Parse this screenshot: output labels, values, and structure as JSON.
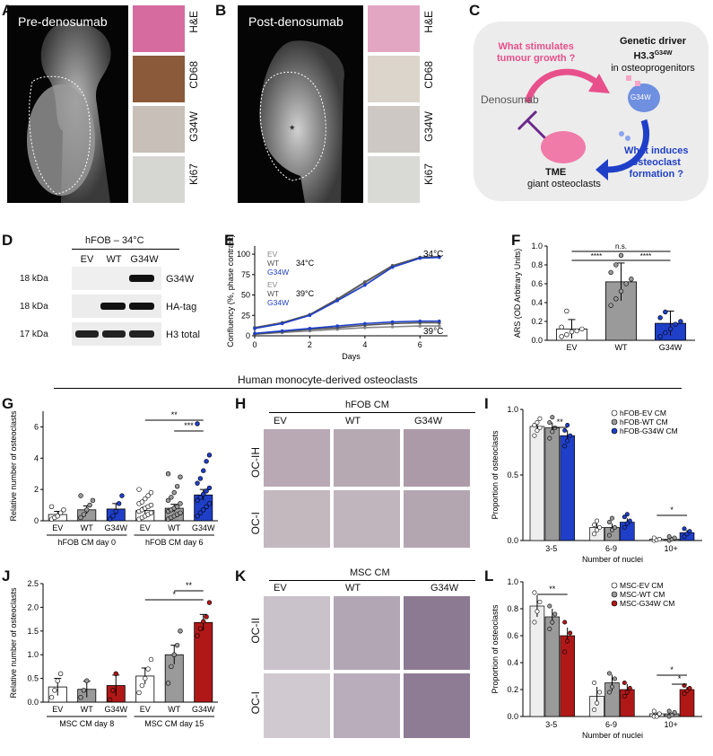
{
  "panels": {
    "A": {
      "letter": "A",
      "title": "Pre-denosumab",
      "stains": [
        "H&E",
        "CD68",
        "G34W",
        "Ki67"
      ]
    },
    "B": {
      "letter": "B",
      "title": "Post-denosumab",
      "stains": [
        "H&E",
        "CD68",
        "G34W",
        "Ki67"
      ],
      "asterisk": "*"
    },
    "C": {
      "letter": "C",
      "q1": [
        "What stimulates",
        "tumour growth ?"
      ],
      "driver": [
        "Genetic driver",
        "H3.3",
        "G34W",
        "in osteoprogenitors"
      ],
      "cell_label": "G34W",
      "denosumab": "Denosumab",
      "tme": "TME",
      "tme_sub": "giant osteoclasts",
      "q2": [
        "What induces",
        "osteoclast",
        "formation ?"
      ]
    },
    "D": {
      "letter": "D",
      "header": "hFOB – 34°C",
      "lanes": [
        "EV",
        "WT",
        "G34W"
      ],
      "rows": [
        {
          "kda": "18 kDa",
          "label": "G34W"
        },
        {
          "kda": "18 kDa",
          "label": "HA-tag"
        },
        {
          "kda": "17 kDa",
          "label": "H3 total"
        }
      ]
    },
    "E": {
      "letter": "E",
      "ylabel": "Confluency (%, phase contrast)",
      "xlabel": "Days",
      "legend34": [
        "EV",
        "WT",
        "G34W"
      ],
      "legend39": [
        "EV",
        "WT",
        "G34W"
      ],
      "temp34": "34°C",
      "temp39": "39°C"
    },
    "F": {
      "letter": "F",
      "ylabel": "ARS (OD Arbitrary Units)",
      "sig": [
        "n.s.",
        "****",
        "****"
      ]
    },
    "G": {
      "letter": "G",
      "ylabel": "Relative number of osteoclasts",
      "group_labels": [
        "hFOB CM day 0",
        "hFOB CM day 6"
      ],
      "sig": [
        "**",
        "***"
      ]
    },
    "H": {
      "letter": "H",
      "header": "hFOB CM",
      "cols": [
        "EV",
        "WT",
        "G34W"
      ],
      "rows": [
        "OC-IH",
        "OC-I"
      ]
    },
    "I": {
      "letter": "I",
      "ylabel": "Proportion of osteoclasts",
      "xlabel": "Number of nuclei",
      "legend": [
        "hFOB-EV CM",
        "hFOB-WT CM",
        "hFOB-G34W CM"
      ],
      "sig": [
        "**",
        "*"
      ]
    },
    "J": {
      "letter": "J",
      "ylabel": "Relative number of osteoclasts",
      "group_labels": [
        "MSC CM day 8",
        "MSC CM day 15"
      ],
      "sig": [
        "*",
        "**"
      ]
    },
    "K": {
      "letter": "K",
      "header": "MSC CM",
      "cols": [
        "EV",
        "WT",
        "G34W"
      ],
      "rows": [
        "OC-II",
        "OC-I"
      ]
    },
    "L": {
      "letter": "L",
      "ylabel": "Proportion of osteoclasts",
      "xlabel": "Number of nuclei",
      "legend": [
        "MSC-EV CM",
        "MSC-WT CM",
        "MSC-G34W CM"
      ],
      "sig": [
        "**",
        "*",
        "*"
      ]
    },
    "section_title": "Human monocyte-derived osteoclasts"
  },
  "chart_data": [
    {
      "id": "E",
      "type": "line",
      "x_range": [
        0,
        7
      ],
      "ylim": [
        0,
        110
      ],
      "xticks": [
        "0",
        "2",
        "4",
        "6"
      ],
      "yticks": [
        "0",
        "25",
        "50",
        "75",
        "100"
      ],
      "series": [
        {
          "name": "EV",
          "condition": "34°C",
          "x": [
            0,
            1,
            2,
            3,
            4,
            5,
            6,
            6.7
          ],
          "values": [
            10,
            16,
            26,
            44,
            65,
            85,
            96,
            97
          ]
        },
        {
          "name": "WT",
          "condition": "34°C",
          "x": [
            0,
            1,
            2,
            3,
            4,
            5,
            6,
            6.7
          ],
          "values": [
            10,
            16,
            26,
            45,
            66,
            86,
            96,
            97
          ]
        },
        {
          "name": "G34W",
          "condition": "34°C",
          "x": [
            0,
            1,
            2,
            3,
            4,
            5,
            6,
            6.7
          ],
          "values": [
            9,
            15,
            25,
            43,
            62,
            84,
            95,
            96
          ]
        },
        {
          "name": "EV",
          "condition": "39°C",
          "x": [
            0,
            1,
            2,
            3,
            4,
            5,
            6,
            6.7
          ],
          "values": [
            2,
            4,
            6,
            8,
            10,
            11,
            12,
            12
          ]
        },
        {
          "name": "WT",
          "condition": "39°C",
          "x": [
            0,
            1,
            2,
            3,
            4,
            5,
            6,
            6.7
          ],
          "values": [
            2,
            5,
            8,
            10,
            13,
            15,
            16,
            16
          ]
        },
        {
          "name": "G34W",
          "condition": "39°C",
          "x": [
            0,
            1,
            2,
            3,
            4,
            5,
            6,
            6.7
          ],
          "values": [
            3,
            6,
            9,
            12,
            15,
            17,
            18,
            18
          ]
        }
      ]
    },
    {
      "id": "F",
      "type": "bar",
      "categories": [
        "EV",
        "WT",
        "G34W"
      ],
      "values": [
        0.12,
        0.62,
        0.18
      ],
      "errors": [
        0.1,
        0.2,
        0.13
      ],
      "ylim": [
        0,
        1.0
      ],
      "yticks": [
        "0.0",
        "0.2",
        "0.4",
        "0.6",
        "0.8",
        "1.0"
      ],
      "points": [
        [
          0.04,
          0.06,
          0.09,
          0.1,
          0.12,
          0.14,
          0.31
        ],
        [
          0.37,
          0.44,
          0.52,
          0.6,
          0.65,
          0.72,
          0.8,
          0.9
        ],
        [
          0.04,
          0.08,
          0.12,
          0.17,
          0.2,
          0.24,
          0.3
        ]
      ],
      "colors": [
        "#ffffff",
        "#9a9a9a",
        "#1f3fc8"
      ]
    },
    {
      "id": "G",
      "type": "bar",
      "categories": [
        "EV",
        "WT",
        "G34W",
        "EV",
        "WT",
        "G34W"
      ],
      "values": [
        0.4,
        0.7,
        0.75,
        0.65,
        0.8,
        1.65
      ],
      "errors": [
        0.2,
        0.25,
        0.35,
        0.2,
        0.25,
        0.35
      ],
      "ylim": [
        0,
        7
      ],
      "yticks": [
        "0",
        "2",
        "4",
        "6"
      ],
      "points": [
        [
          0.1,
          0.2,
          0.3,
          0.5,
          0.7,
          0.9
        ],
        [
          0.2,
          0.4,
          0.7,
          1.0,
          1.3,
          1.6
        ],
        [
          0.1,
          0.3,
          0.6,
          1.1,
          1.6
        ],
        [
          0.1,
          0.2,
          0.3,
          0.4,
          0.5,
          0.6,
          0.7,
          0.8,
          0.9,
          1.0,
          1.1,
          1.2,
          1.4,
          1.6,
          1.8,
          2.0
        ],
        [
          0.1,
          0.2,
          0.3,
          0.4,
          0.5,
          0.6,
          0.7,
          0.8,
          0.9,
          1.1,
          1.3,
          1.5,
          1.8,
          2.2,
          2.8,
          3.0
        ],
        [
          0.3,
          0.5,
          0.7,
          0.9,
          1.1,
          1.3,
          1.5,
          1.7,
          1.9,
          2.1,
          2.4,
          2.7,
          3.2,
          3.8,
          4.2,
          6.2
        ]
      ],
      "colors": [
        "#ffffff",
        "#9a9a9a",
        "#1f3fc8",
        "#ffffff",
        "#9a9a9a",
        "#1f3fc8"
      ]
    },
    {
      "id": "I",
      "type": "bar",
      "categories": [
        "3-5",
        "6-9",
        "10+"
      ],
      "series": [
        {
          "name": "hFOB-EV CM",
          "values": [
            0.87,
            0.1,
            0.01
          ],
          "errors": [
            0.04,
            0.03,
            0.01
          ],
          "points": [
            [
              0.8,
              0.84,
              0.86,
              0.88,
              0.9,
              0.93
            ],
            [
              0.05,
              0.08,
              0.1,
              0.12,
              0.15
            ],
            [
              0.0,
              0.005,
              0.01,
              0.02
            ]
          ]
        },
        {
          "name": "hFOB-WT CM",
          "values": [
            0.86,
            0.1,
            0.01
          ],
          "errors": [
            0.04,
            0.03,
            0.01
          ],
          "points": [
            [
              0.78,
              0.83,
              0.86,
              0.9,
              0.94
            ],
            [
              0.04,
              0.08,
              0.1,
              0.14,
              0.17
            ],
            [
              0.0,
              0.01,
              0.02,
              0.03
            ]
          ]
        },
        {
          "name": "hFOB-G34W CM",
          "values": [
            0.8,
            0.14,
            0.06
          ],
          "errors": [
            0.04,
            0.03,
            0.02
          ],
          "points": [
            [
              0.72,
              0.76,
              0.8,
              0.84,
              0.88
            ],
            [
              0.1,
              0.13,
              0.15,
              0.18,
              0.2
            ],
            [
              0.03,
              0.05,
              0.07,
              0.09
            ]
          ]
        }
      ],
      "ylim": [
        0,
        1.0
      ],
      "yticks": [
        "0.0",
        "0.5",
        "1.0"
      ],
      "colors": [
        "#eeeeee",
        "#9a9a9a",
        "#1f3fc8"
      ]
    },
    {
      "id": "J",
      "type": "bar",
      "categories": [
        "EV",
        "WT",
        "G34W",
        "EV",
        "WT",
        "G34W"
      ],
      "values": [
        0.32,
        0.27,
        0.35,
        0.55,
        1.0,
        1.68
      ],
      "errors": [
        0.18,
        0.17,
        0.22,
        0.17,
        0.2,
        0.17
      ],
      "ylim": [
        0,
        2.5
      ],
      "yticks": [
        "0.0",
        "0.5",
        "1.0",
        "1.5",
        "2.0",
        "2.5"
      ],
      "points": [
        [
          0.1,
          0.25,
          0.45,
          0.6
        ],
        [
          0.1,
          0.25,
          0.45
        ],
        [
          0.05,
          0.25,
          0.6
        ],
        [
          0.2,
          0.35,
          0.5,
          0.7,
          0.9
        ],
        [
          0.4,
          0.75,
          1.0,
          1.2,
          1.5
        ],
        [
          1.4,
          1.55,
          1.7,
          1.8,
          2.1
        ]
      ],
      "colors": [
        "#ffffff",
        "#9a9a9a",
        "#b01818",
        "#ffffff",
        "#9a9a9a",
        "#b01818"
      ]
    },
    {
      "id": "L",
      "type": "bar",
      "categories": [
        "3-5",
        "6-9",
        "10+"
      ],
      "series": [
        {
          "name": "MSC-EV CM",
          "values": [
            0.82,
            0.15,
            0.02
          ],
          "errors": [
            0.08,
            0.07,
            0.01
          ],
          "points": [
            [
              0.7,
              0.78,
              0.85,
              0.92
            ],
            [
              0.05,
              0.1,
              0.18,
              0.25
            ],
            [
              0.0,
              0.0,
              0.02,
              0.04
            ]
          ]
        },
        {
          "name": "MSC-WT CM",
          "values": [
            0.74,
            0.25,
            0.02
          ],
          "errors": [
            0.06,
            0.06,
            0.01
          ],
          "points": [
            [
              0.65,
              0.7,
              0.76,
              0.82
            ],
            [
              0.18,
              0.22,
              0.28,
              0.32
            ],
            [
              0.0,
              0.01,
              0.03,
              0.04
            ]
          ]
        },
        {
          "name": "MSC-G34W CM",
          "values": [
            0.6,
            0.2,
            0.2
          ],
          "errors": [
            0.06,
            0.04,
            0.02
          ],
          "points": [
            [
              0.48,
              0.56,
              0.62,
              0.7
            ],
            [
              0.15,
              0.18,
              0.21,
              0.25
            ],
            [
              0.17,
              0.19,
              0.21,
              0.23
            ]
          ]
        }
      ],
      "ylim": [
        0,
        1.0
      ],
      "yticks": [
        "0.0",
        "0.2",
        "0.4",
        "0.6",
        "0.8",
        "1.0"
      ],
      "colors": [
        "#eeeeee",
        "#9a9a9a",
        "#b01818"
      ]
    }
  ]
}
